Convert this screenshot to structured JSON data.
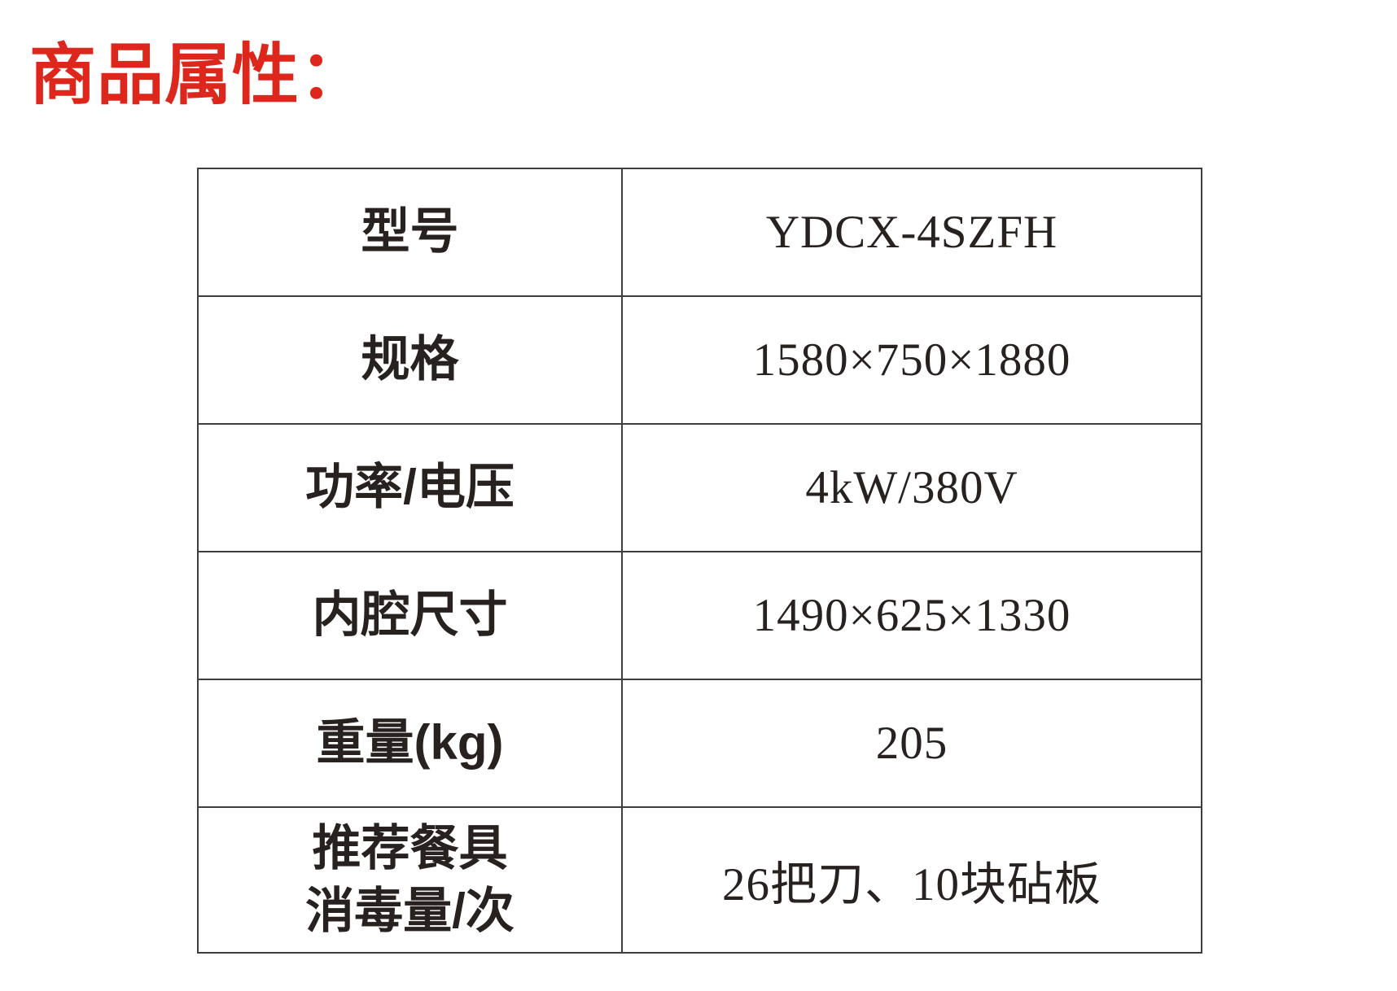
{
  "page": {
    "title": "商品属性："
  },
  "colors": {
    "accent_red": "#dd261c",
    "text": "#272220",
    "border": "#3e3e3e",
    "background": "#ffffff"
  },
  "spec_table": {
    "rows": [
      {
        "label": "型号",
        "value": "YDCX-4SZFH"
      },
      {
        "label": "规格",
        "value": "1580×750×1880"
      },
      {
        "label": "功率/电压",
        "value": "4kW/380V"
      },
      {
        "label": "内腔尺寸",
        "value": "1490×625×1330"
      },
      {
        "label": "重量(kg)",
        "value": "205"
      },
      {
        "label": "推荐餐具\n消毒量/次",
        "value": "26把刀、10块砧板"
      }
    ]
  }
}
